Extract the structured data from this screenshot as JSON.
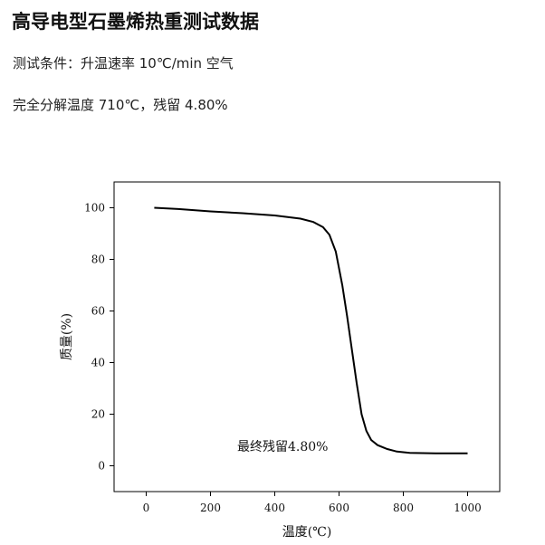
{
  "header": {
    "title": "高导电型石墨烯热重测试数据",
    "condition": "测试条件：升温速率 10℃/min  空气",
    "result": "完全分解温度 710℃，残留 4.80%"
  },
  "chart_data": {
    "type": "line",
    "xlabel": "温度(℃)",
    "ylabel": "质量(%)",
    "xlim": [
      -100,
      1100
    ],
    "ylim": [
      -10,
      110
    ],
    "xticks": [
      0,
      200,
      400,
      600,
      800,
      1000
    ],
    "yticks": [
      0,
      20,
      40,
      60,
      80,
      100
    ],
    "grid": false,
    "annotation": "最终残留4.80%",
    "series": [
      {
        "x": [
          25,
          100,
          200,
          300,
          400,
          480,
          520,
          550,
          570,
          590,
          610,
          625,
          640,
          655,
          670,
          685,
          700,
          720,
          750,
          780,
          820,
          860,
          900,
          950,
          1000
        ],
        "y": [
          100,
          99.5,
          98.6,
          97.9,
          97.0,
          95.8,
          94.5,
          92.5,
          89.5,
          83.0,
          70.0,
          58.0,
          45.0,
          32.0,
          20.0,
          13.5,
          10.0,
          8.0,
          6.5,
          5.5,
          5.0,
          4.9,
          4.85,
          4.8,
          4.8
        ]
      }
    ]
  }
}
